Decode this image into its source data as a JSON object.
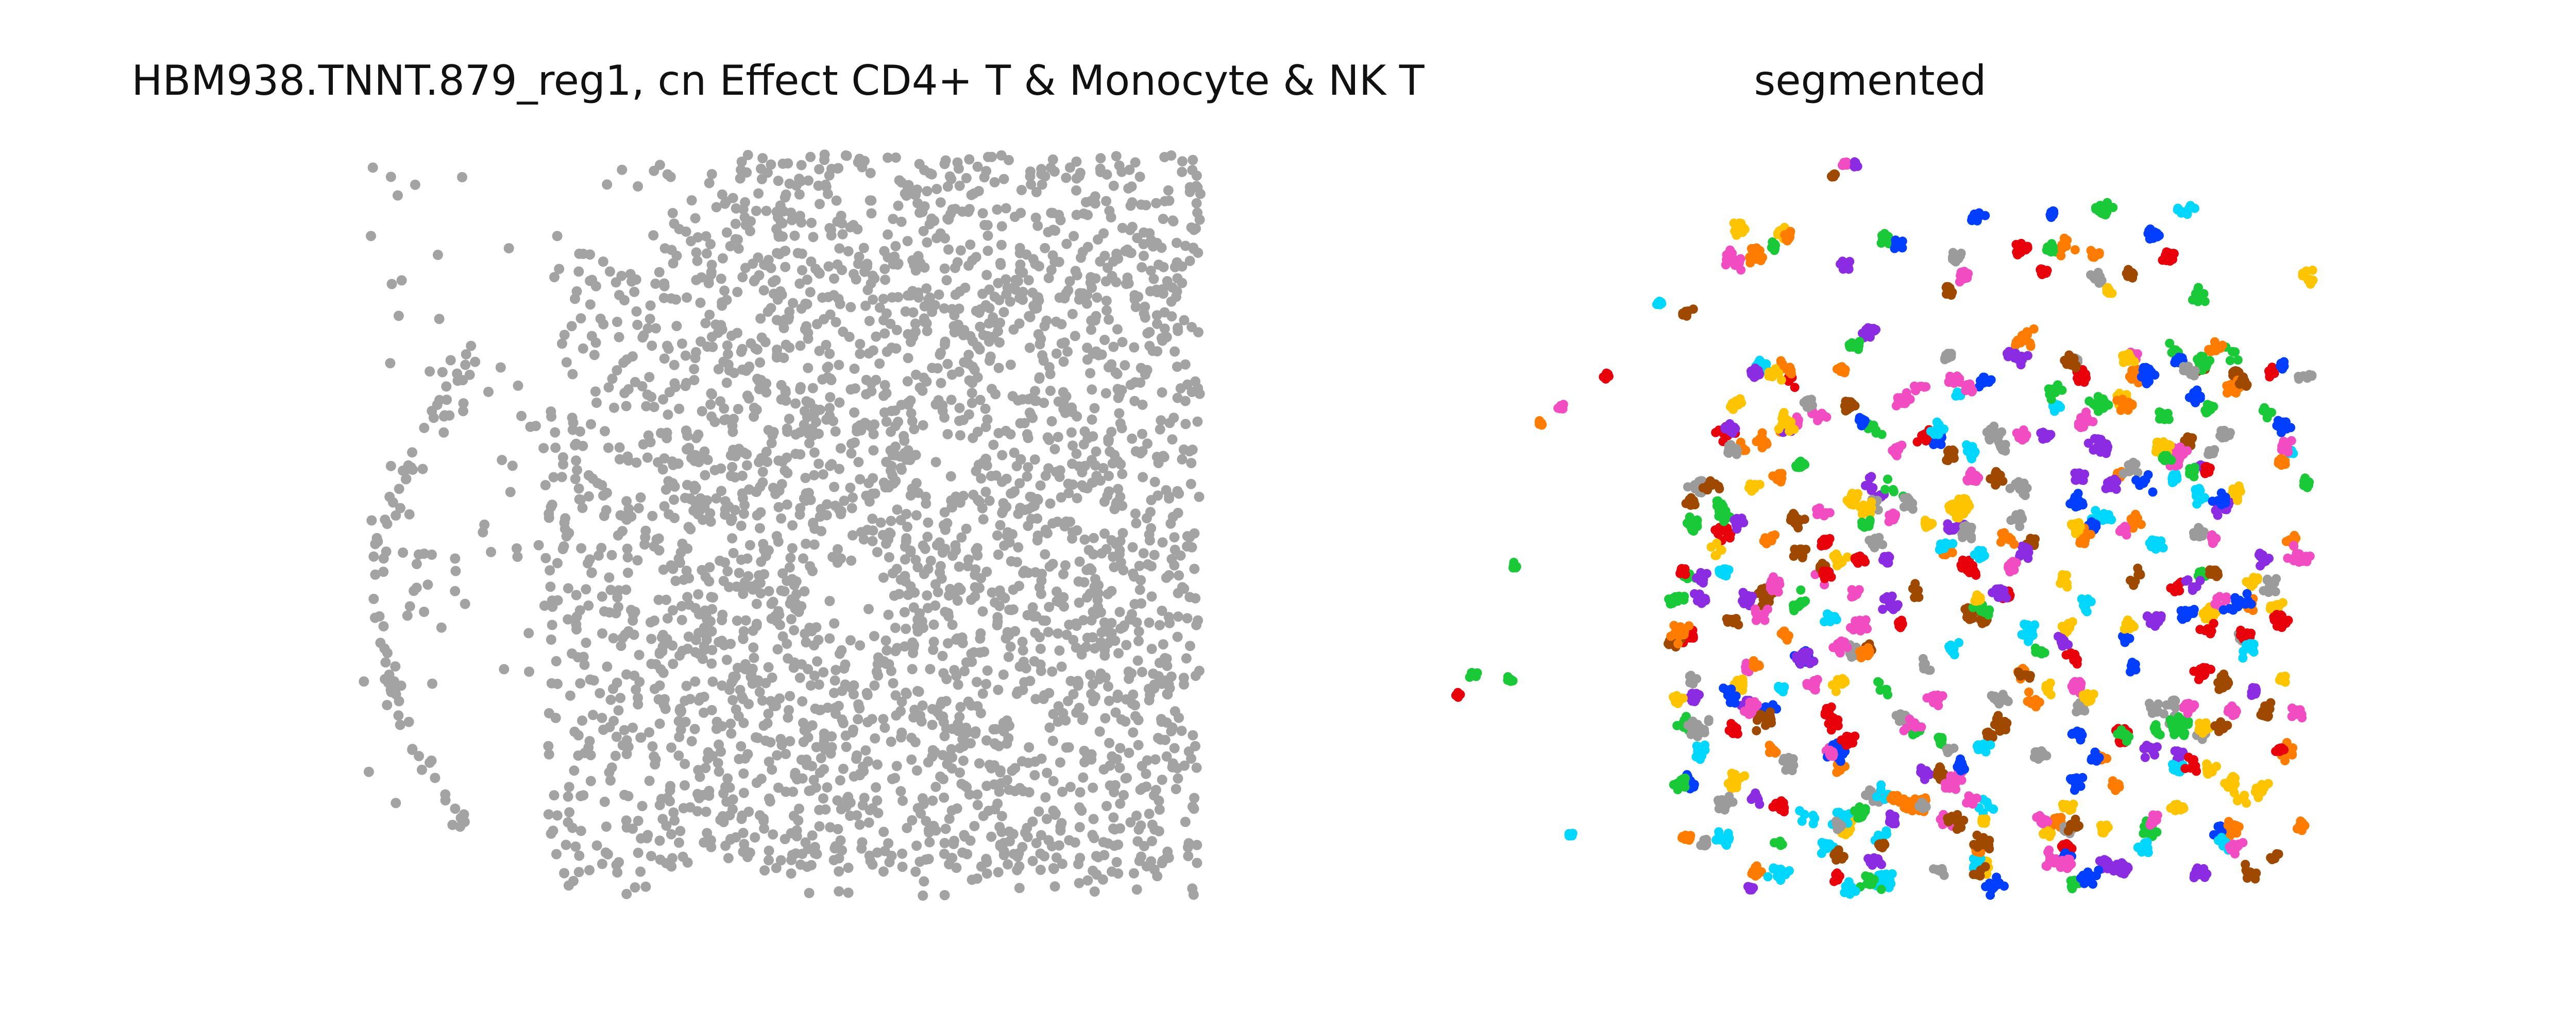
{
  "chart_data": [
    {
      "type": "scatter",
      "title": "HBM938.TNNT.879_reg1, cn Effect CD4+ T & Monocyte & NK T",
      "axes_visible": false,
      "point_color": "#A3A3A3",
      "point_count_approx": 3000
    },
    {
      "type": "scatter",
      "title": "segmented",
      "axes_visible": false,
      "palette": [
        "#9B9B9B",
        "#E8000B",
        "#FF7C00",
        "#1AC938",
        "#023EFF",
        "#8B2BE2",
        "#F14CC1",
        "#FFC400",
        "#00D7FF",
        "#9F4800"
      ],
      "cluster_count_approx": 420
    }
  ]
}
